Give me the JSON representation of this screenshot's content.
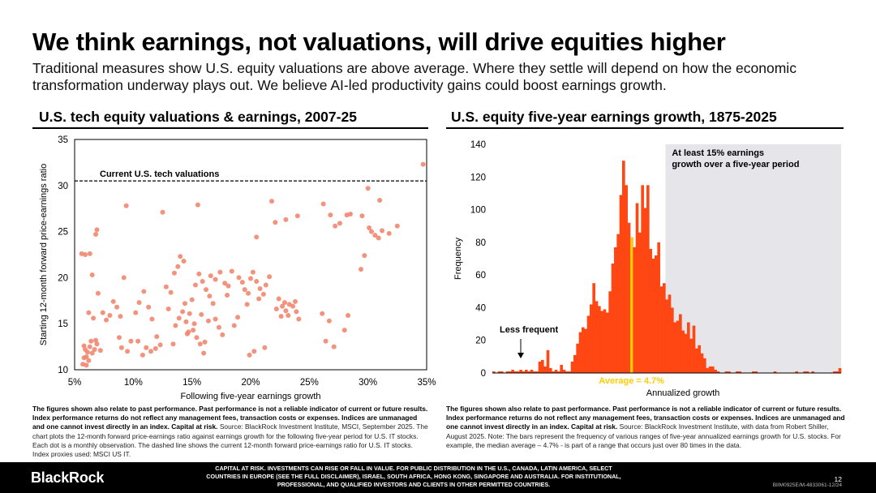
{
  "title": "We think earnings, not valuations, will drive equities higher",
  "subtitle": "Traditional measures show U.S. equity valuations are above average. Where they settle will depend on how the economic transformation underway plays out. We believe AI-led productivity gains could boost earnings growth.",
  "left_panel_title": "U.S. tech equity valuations & earnings, 2007-25",
  "right_panel_title": "U.S. equity five-year earnings growth, 1875-2025",
  "colors": {
    "dot": "#F2866F",
    "bar": "#FF4713",
    "avg": "#FFCC00",
    "shade": "#E5E5EA"
  },
  "left_note": {
    "bold": "The figures shown also relate to past performance. Past performance is not a reliable indicator of current or future results. Index performance returns do not reflect any management fees, transaction costs or expenses. Indices are unmanaged and one cannot invest directly in an index. Capital at risk.",
    "text": " Source: BlackRock Investment Institute, MSCI, September 2025. The chart plots the 12-month forward price-earnings ratio against earnings growth for the following five-year period for U.S. IT stocks. Each dot is a monthly observation. The dashed line shows the current 12-month forward price-earnings ratio for U.S. IT stocks. Index proxies used: MSCI US IT."
  },
  "right_note": {
    "bold": "The figures shown also relate to past performance. Past performance is not a reliable indicator of current or future results. Index performance returns do not reflect any management fees, transaction costs or expenses. Indices are unmanaged and one cannot invest directly in an index. Capital at risk.",
    "text": " Source: BlackRock Investment Institute, with data from Robert Shiller, August 2025. Note: The bars represent the frequency of various ranges of five-year annualized earnings growth for U.S. stocks. For example, the median average – 4.7% - is part of a range that occurs just over 80 times in the data."
  },
  "footer": {
    "brand": "BlackRock",
    "disclaimer": "CAPITAL AT RISK. INVESTMENTS CAN RISE OR FALL IN VALUE. FOR PUBLIC DISTRIBUTION IN THE U.S., CANADA, LATIN AMERICA, SELECT COUNTRIES IN EUROPE (SEE THE FULL DISCLAIMER), ISRAEL, SOUTH AFRICA, HONG KONG, SINGAPORE AND AUSTRALIA. FOR INSTITUTIONAL, PROFESSIONAL, AND QUALIFIED INVESTORS AND CLIENTS IN OTHER PERMITTED COUNTRIES.",
    "page": "12",
    "doc_id": "BIIM0925E/M-4833061-12/24"
  },
  "chart_data": [
    {
      "type": "scatter",
      "title": "U.S. tech equity valuations & earnings, 2007-25",
      "xlabel": "Following five-year earnings growth",
      "ylabel": "Starting 12-month forward price-earnings ratio",
      "xlim": [
        5,
        35
      ],
      "ylim": [
        10,
        35
      ],
      "xticks": [
        5,
        10,
        15,
        20,
        25,
        30,
        35
      ],
      "xtick_labels": [
        "5%",
        "10%",
        "15%",
        "20%",
        "25%",
        "30%",
        "35%"
      ],
      "yticks": [
        10,
        15,
        20,
        25,
        30,
        35
      ],
      "reference_line": {
        "y": 30.5,
        "label": "Current U.S. tech valuations",
        "style": "dashed"
      },
      "points": [
        [
          5.6,
          22.6
        ],
        [
          5.9,
          22.5
        ],
        [
          6.3,
          22.6
        ],
        [
          6.5,
          20.3
        ],
        [
          6.8,
          24.7
        ],
        [
          6.9,
          25.2
        ],
        [
          7.0,
          18.3
        ],
        [
          6.6,
          15.6
        ],
        [
          6.2,
          16.2
        ],
        [
          5.8,
          12.6
        ],
        [
          5.9,
          12.2
        ],
        [
          6.1,
          11.9
        ],
        [
          6.3,
          12.5
        ],
        [
          6.0,
          11.4
        ],
        [
          6.2,
          11.0
        ],
        [
          6.5,
          11.8
        ],
        [
          6.7,
          12.2
        ],
        [
          6.9,
          12.8
        ],
        [
          6.4,
          13.1
        ],
        [
          5.7,
          10.6
        ],
        [
          6.0,
          10.5
        ],
        [
          5.8,
          11.3
        ],
        [
          6.8,
          13.2
        ],
        [
          7.2,
          12.1
        ],
        [
          7.4,
          16.2
        ],
        [
          7.7,
          15.4
        ],
        [
          8.0,
          15.9
        ],
        [
          8.3,
          17.4
        ],
        [
          8.6,
          16.8
        ],
        [
          8.9,
          15.8
        ],
        [
          9.2,
          20.0
        ],
        [
          9.4,
          27.8
        ],
        [
          8.8,
          13.5
        ],
        [
          9.0,
          12.4
        ],
        [
          9.5,
          12.0
        ],
        [
          9.8,
          13.1
        ],
        [
          10.2,
          16.2
        ],
        [
          10.5,
          17.3
        ],
        [
          10.9,
          18.5
        ],
        [
          11.3,
          16.8
        ],
        [
          11.6,
          15.5
        ],
        [
          12.0,
          13.6
        ],
        [
          12.3,
          12.7
        ],
        [
          10.8,
          11.6
        ],
        [
          11.1,
          12.4
        ],
        [
          11.5,
          12.0
        ],
        [
          11.9,
          12.3
        ],
        [
          10.4,
          13.1
        ],
        [
          12.5,
          27.1
        ],
        [
          12.8,
          19.0
        ],
        [
          13.2,
          18.4
        ],
        [
          13.5,
          20.5
        ],
        [
          13.8,
          21.2
        ],
        [
          14.0,
          22.3
        ],
        [
          14.3,
          21.8
        ],
        [
          13.6,
          14.8
        ],
        [
          13.9,
          15.6
        ],
        [
          14.2,
          16.3
        ],
        [
          14.5,
          15.2
        ],
        [
          14.8,
          16.1
        ],
        [
          15.1,
          14.3
        ],
        [
          15.4,
          13.5
        ],
        [
          15.7,
          12.8
        ],
        [
          16.0,
          11.8
        ],
        [
          13.4,
          12.8
        ],
        [
          13.0,
          16.6
        ],
        [
          14.6,
          13.9
        ],
        [
          14.4,
          17.2
        ],
        [
          15.0,
          17.6
        ],
        [
          15.3,
          19.2
        ],
        [
          15.6,
          20.4
        ],
        [
          15.9,
          19.6
        ],
        [
          16.2,
          18.7
        ],
        [
          16.5,
          18.0
        ],
        [
          16.8,
          17.2
        ],
        [
          17.0,
          15.5
        ],
        [
          17.3,
          14.6
        ],
        [
          17.6,
          13.8
        ],
        [
          16.4,
          15.3
        ],
        [
          15.8,
          16.0
        ],
        [
          15.2,
          15.0
        ],
        [
          14.7,
          14.1
        ],
        [
          16.1,
          13.0
        ],
        [
          15.5,
          27.9
        ],
        [
          16.6,
          20.2
        ],
        [
          17.0,
          19.8
        ],
        [
          17.4,
          20.6
        ],
        [
          17.8,
          19.4
        ],
        [
          18.1,
          19.1
        ],
        [
          18.4,
          20.7
        ],
        [
          18.0,
          18.1
        ],
        [
          19.0,
          20.0
        ],
        [
          19.3,
          19.5
        ],
        [
          19.5,
          18.7
        ],
        [
          19.8,
          18.3
        ],
        [
          20.0,
          19.9
        ],
        [
          20.2,
          20.6
        ],
        [
          20.5,
          19.6
        ],
        [
          20.8,
          18.8
        ],
        [
          21.1,
          18.2
        ],
        [
          21.3,
          19.2
        ],
        [
          21.6,
          20.1
        ],
        [
          20.7,
          17.7
        ],
        [
          19.7,
          17.1
        ],
        [
          18.6,
          14.8
        ],
        [
          18.9,
          15.7
        ],
        [
          20.5,
          24.4
        ],
        [
          20.3,
          12.0
        ],
        [
          21.2,
          12.4
        ],
        [
          19.9,
          11.6
        ],
        [
          21.8,
          28.3
        ],
        [
          22.1,
          26.0
        ],
        [
          22.4,
          17.7
        ],
        [
          22.7,
          16.9
        ],
        [
          23.0,
          16.4
        ],
        [
          23.3,
          17.1
        ],
        [
          23.6,
          16.9
        ],
        [
          23.9,
          16.3
        ],
        [
          22.9,
          17.3
        ],
        [
          22.2,
          16.6
        ],
        [
          22.6,
          15.8
        ],
        [
          23.2,
          15.9
        ],
        [
          23.8,
          17.4
        ],
        [
          24.1,
          15.5
        ],
        [
          23.0,
          26.3
        ],
        [
          24.0,
          26.7
        ],
        [
          26.2,
          28.0
        ],
        [
          26.8,
          26.8
        ],
        [
          27.2,
          25.6
        ],
        [
          27.6,
          25.9
        ],
        [
          28.2,
          26.8
        ],
        [
          28.5,
          26.9
        ],
        [
          29.5,
          26.7
        ],
        [
          26.1,
          16.1
        ],
        [
          26.4,
          13.1
        ],
        [
          26.7,
          15.3
        ],
        [
          27.1,
          12.5
        ],
        [
          28.0,
          14.3
        ],
        [
          28.3,
          15.9
        ],
        [
          29.4,
          20.9
        ],
        [
          30.0,
          29.7
        ],
        [
          30.3,
          25.0
        ],
        [
          30.6,
          24.6
        ],
        [
          30.9,
          24.3
        ],
        [
          31.2,
          25.1
        ],
        [
          30.1,
          25.4
        ],
        [
          31.0,
          28.4
        ],
        [
          31.8,
          24.8
        ],
        [
          32.5,
          25.6
        ],
        [
          29.7,
          22.4
        ],
        [
          34.7,
          32.3
        ]
      ]
    },
    {
      "type": "bar",
      "title": "U.S. equity five-year earnings growth, 1875-2025",
      "xlabel": "Annualized growth",
      "ylabel": "Frequency",
      "ylim": [
        0,
        140
      ],
      "yticks": [
        0,
        20,
        40,
        60,
        80,
        100,
        120,
        140
      ],
      "shaded_region_label": "At least 15% earnings growth over a five-year period",
      "shaded_region_start_index": 64,
      "average_index": 51,
      "average_label": "Average = 4.7%",
      "annotation": "Less frequent",
      "annotation_index": 10,
      "values": [
        1,
        0,
        1,
        1,
        0,
        1,
        1,
        2,
        1,
        1,
        2,
        1,
        2,
        1,
        2,
        1,
        1,
        7,
        8,
        4,
        14,
        3,
        1,
        2,
        1,
        5,
        2,
        1,
        1,
        7,
        11,
        18,
        25,
        28,
        27,
        35,
        42,
        55,
        44,
        41,
        38,
        39,
        37,
        50,
        67,
        77,
        85,
        109,
        130,
        115,
        92,
        83,
        77,
        104,
        86,
        115,
        101,
        115,
        76,
        70,
        72,
        80,
        53,
        55,
        45,
        48,
        40,
        31,
        32,
        36,
        26,
        24,
        31,
        21,
        29,
        15,
        17,
        12,
        9,
        3,
        4,
        4,
        2,
        1,
        0,
        0,
        1,
        1,
        0,
        0,
        1,
        1,
        0,
        0,
        0,
        0,
        1,
        1,
        0,
        0,
        0,
        0,
        0,
        0,
        1,
        0,
        0,
        0,
        0,
        0,
        0,
        0,
        1,
        0,
        0,
        1,
        1,
        0,
        1,
        0,
        0,
        0,
        0,
        0,
        0,
        0,
        1,
        1,
        3
      ]
    }
  ]
}
